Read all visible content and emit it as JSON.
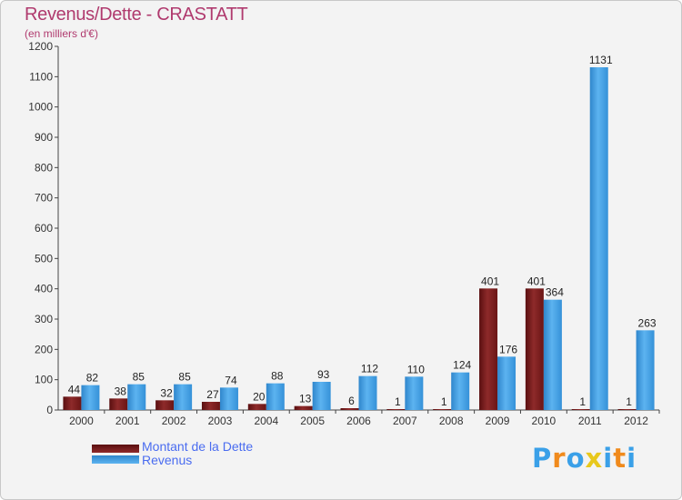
{
  "title": "Revenus/Dette - CRASTATT",
  "subtitle": "(en milliers d'€)",
  "logo": {
    "text": "Proxiti",
    "letters": [
      "P",
      "r",
      "o",
      "x",
      "i",
      "t",
      "i"
    ],
    "colors": [
      "#3aa0e8",
      "#f08a1c",
      "#3aa0e8",
      "#e8c81c",
      "#3aa0e8",
      "#f08a1c",
      "#3aa0e8"
    ]
  },
  "chart_data": {
    "type": "bar",
    "title": "Revenus/Dette - CRASTATT",
    "ylabel": "(en milliers d'€)",
    "categories": [
      "2000",
      "2001",
      "2002",
      "2003",
      "2004",
      "2005",
      "2006",
      "2007",
      "2008",
      "2009",
      "2010",
      "2011",
      "2012"
    ],
    "series": [
      {
        "name": "Montant de la Dette",
        "color": "#7a1e1e",
        "values": [
          44,
          38,
          32,
          27,
          20,
          13,
          6,
          1,
          1,
          401,
          401,
          1,
          1
        ]
      },
      {
        "name": "Revenus",
        "color": "#3e9ee0",
        "values": [
          82,
          85,
          85,
          74,
          88,
          93,
          112,
          110,
          124,
          176,
          364,
          1131,
          263
        ]
      }
    ],
    "ylim": [
      0,
      1200
    ],
    "yticks": [
      0,
      100,
      200,
      300,
      400,
      500,
      600,
      700,
      800,
      900,
      1000,
      1100,
      1200
    ],
    "grid": false,
    "legend": "bottom-left"
  }
}
